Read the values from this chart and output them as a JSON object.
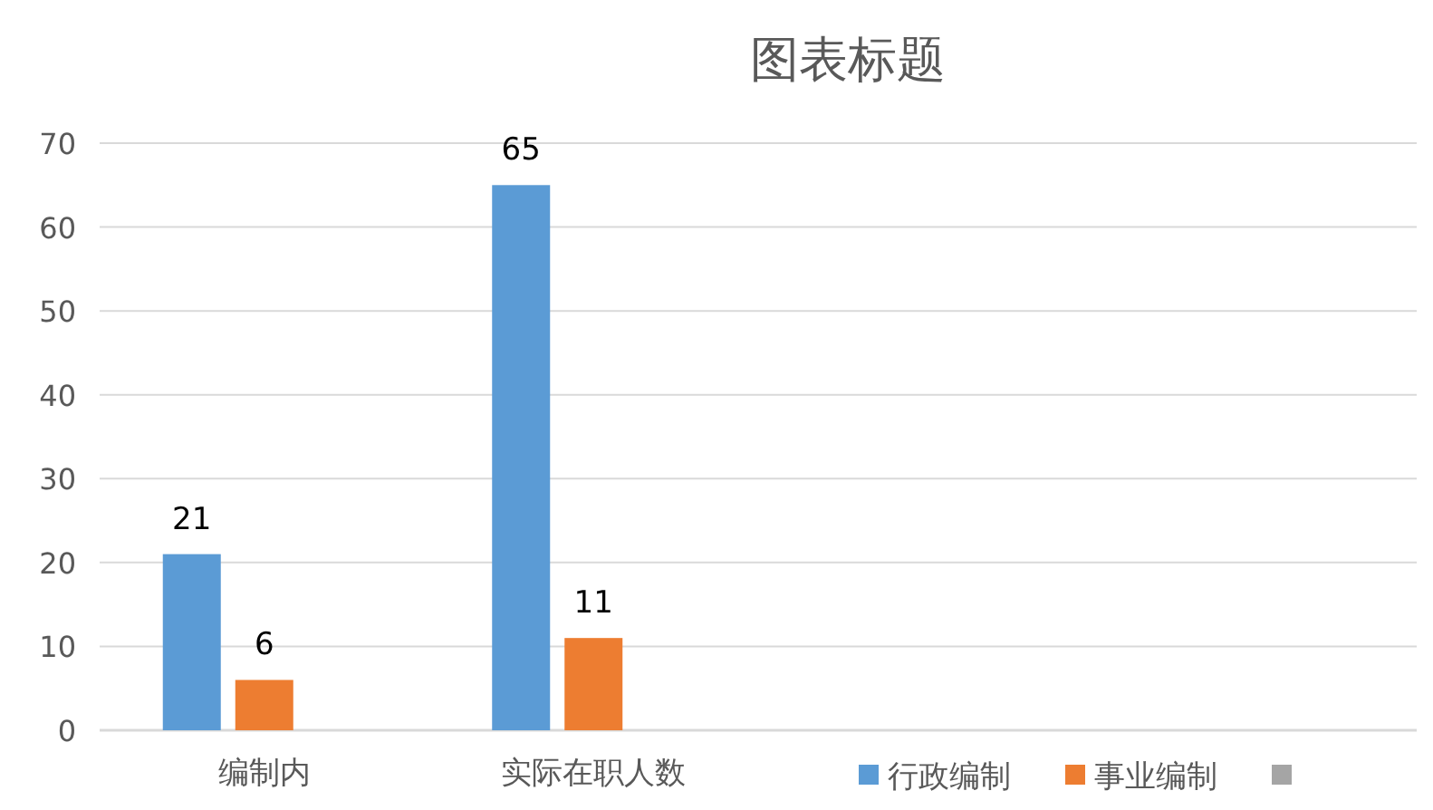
{
  "chart_data": {
    "type": "bar",
    "title": "图表标题",
    "categories": [
      "编制内",
      "实际在职人数",
      null,
      null
    ],
    "series": [
      {
        "name": "行政编制",
        "color": "#5b9bd5",
        "values": [
          21,
          65,
          null,
          null
        ]
      },
      {
        "name": "事业编制",
        "color": "#ed7d31",
        "values": [
          6,
          11,
          null,
          null
        ]
      },
      {
        "color": "#a5a5a5",
        "values": [
          null,
          null,
          null,
          null
        ]
      }
    ],
    "ylim": [
      0,
      70
    ],
    "yticks": [
      0,
      10,
      20,
      30,
      40,
      50,
      60,
      70
    ],
    "grid": "y",
    "data_labels": true,
    "legend": "bottom right"
  }
}
